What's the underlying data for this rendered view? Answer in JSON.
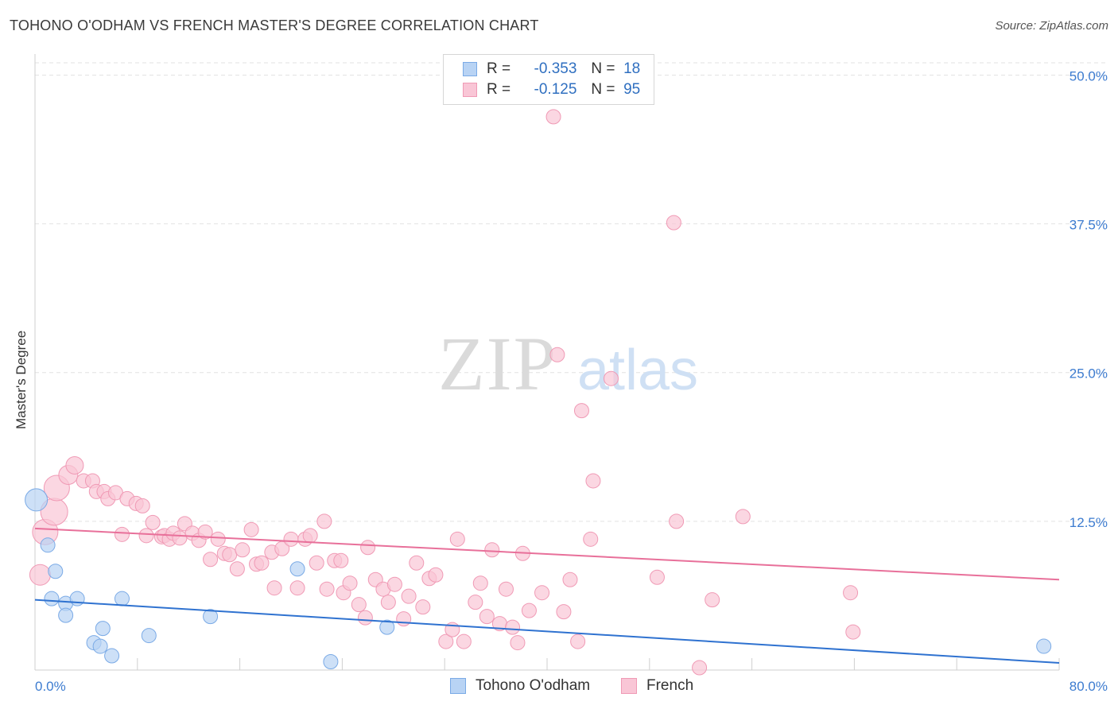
{
  "title": "TOHONO O'ODHAM VS FRENCH MASTER'S DEGREE CORRELATION CHART",
  "source": "Source: ZipAtlas.com",
  "watermark": {
    "zip": "ZIP",
    "atlas": "atlas"
  },
  "colors": {
    "blue_fill": "#b8d3f4",
    "blue_stroke": "#7aaae6",
    "blue_line": "#2f72d0",
    "pink_fill": "#f9c6d6",
    "pink_stroke": "#f09ab5",
    "pink_line": "#e8709a",
    "tick_label": "#3d7cd0",
    "grid": "#e2e2e2"
  },
  "legend": {
    "rows": [
      {
        "r_label": "R =",
        "r_value": "-0.353",
        "n_label": "N =",
        "n_value": "18"
      },
      {
        "r_label": "R =",
        "r_value": "-0.125",
        "n_label": "N =",
        "n_value": "95"
      }
    ]
  },
  "chart_data": {
    "type": "scatter",
    "title": "TOHONO O'ODHAM VS FRENCH MASTER'S DEGREE CORRELATION CHART",
    "xlabel": "",
    "ylabel": "Master's Degree",
    "xlim": [
      0,
      80
    ],
    "ylim": [
      0,
      51.5
    ],
    "x_tick_labels": [
      "0.0%",
      "80.0%"
    ],
    "y_ticks": [
      12.5,
      25.0,
      37.5,
      50.0
    ],
    "y_tick_labels": [
      "12.5%",
      "25.0%",
      "37.5%",
      "50.0%"
    ],
    "series": [
      {
        "name": "Tohono O'odham",
        "color": "blue",
        "trend": [
          [
            0,
            5.9
          ],
          [
            80,
            0.6
          ]
        ],
        "points": [
          [
            0.1,
            14.3,
            14
          ],
          [
            1.0,
            10.5,
            9
          ],
          [
            1.6,
            8.3,
            9
          ],
          [
            1.3,
            6.0,
            9
          ],
          [
            2.4,
            5.6,
            9
          ],
          [
            3.3,
            6.0,
            9
          ],
          [
            2.4,
            4.6,
            9
          ],
          [
            5.3,
            3.5,
            9
          ],
          [
            6.8,
            6.0,
            9
          ],
          [
            4.6,
            2.3,
            9
          ],
          [
            5.1,
            2.0,
            9
          ],
          [
            6.0,
            1.2,
            9
          ],
          [
            8.9,
            2.9,
            9
          ],
          [
            13.7,
            4.5,
            9
          ],
          [
            20.5,
            8.5,
            9
          ],
          [
            23.1,
            0.7,
            9
          ],
          [
            27.5,
            3.6,
            9
          ],
          [
            78.8,
            2.0,
            9
          ]
        ]
      },
      {
        "name": "French",
        "color": "pink",
        "trend": [
          [
            0,
            11.9
          ],
          [
            80,
            7.6
          ]
        ],
        "points": [
          [
            0.4,
            8.0,
            13
          ],
          [
            0.8,
            11.6,
            16
          ],
          [
            1.5,
            13.3,
            17
          ],
          [
            1.7,
            15.3,
            16
          ],
          [
            2.6,
            16.4,
            12
          ],
          [
            3.1,
            17.2,
            11
          ],
          [
            3.8,
            15.9,
            9
          ],
          [
            4.5,
            15.9,
            9
          ],
          [
            4.8,
            15.0,
            9
          ],
          [
            5.4,
            15.0,
            9
          ],
          [
            5.7,
            14.4,
            9
          ],
          [
            6.3,
            14.9,
            9
          ],
          [
            7.2,
            14.4,
            9
          ],
          [
            7.9,
            14.0,
            9
          ],
          [
            8.4,
            13.8,
            9
          ],
          [
            6.8,
            11.4,
            9
          ],
          [
            8.7,
            11.3,
            9
          ],
          [
            9.2,
            12.4,
            9
          ],
          [
            9.9,
            11.2,
            9
          ],
          [
            10.1,
            11.3,
            9
          ],
          [
            10.5,
            11.0,
            9
          ],
          [
            10.8,
            11.5,
            9
          ],
          [
            11.3,
            11.1,
            9
          ],
          [
            11.7,
            12.3,
            9
          ],
          [
            12.3,
            11.5,
            9
          ],
          [
            12.8,
            10.9,
            9
          ],
          [
            13.3,
            11.6,
            9
          ],
          [
            13.7,
            9.3,
            9
          ],
          [
            14.3,
            11.0,
            9
          ],
          [
            14.8,
            9.8,
            9
          ],
          [
            15.2,
            9.7,
            9
          ],
          [
            15.8,
            8.5,
            9
          ],
          [
            16.2,
            10.1,
            9
          ],
          [
            16.9,
            11.8,
            9
          ],
          [
            17.3,
            8.9,
            9
          ],
          [
            17.7,
            9.0,
            9
          ],
          [
            18.5,
            9.9,
            9
          ],
          [
            18.7,
            6.9,
            9
          ],
          [
            19.3,
            10.2,
            9
          ],
          [
            20.0,
            11.0,
            9
          ],
          [
            20.5,
            6.9,
            9
          ],
          [
            21.1,
            11.0,
            9
          ],
          [
            21.5,
            11.3,
            9
          ],
          [
            22.0,
            9.0,
            9
          ],
          [
            22.6,
            12.5,
            9
          ],
          [
            22.8,
            6.8,
            9
          ],
          [
            23.4,
            9.2,
            9
          ],
          [
            23.9,
            9.2,
            9
          ],
          [
            24.1,
            6.5,
            9
          ],
          [
            24.6,
            7.3,
            9
          ],
          [
            25.3,
            5.5,
            9
          ],
          [
            25.8,
            4.4,
            9
          ],
          [
            26.0,
            10.3,
            9
          ],
          [
            26.6,
            7.6,
            9
          ],
          [
            27.2,
            6.8,
            9
          ],
          [
            27.6,
            5.7,
            9
          ],
          [
            28.1,
            7.2,
            9
          ],
          [
            28.8,
            4.3,
            9
          ],
          [
            29.2,
            6.2,
            9
          ],
          [
            29.8,
            9.0,
            9
          ],
          [
            30.3,
            5.3,
            9
          ],
          [
            30.8,
            7.7,
            9
          ],
          [
            31.3,
            8.0,
            9
          ],
          [
            32.1,
            2.4,
            9
          ],
          [
            32.6,
            3.4,
            9
          ],
          [
            33.0,
            11.0,
            9
          ],
          [
            33.5,
            2.4,
            9
          ],
          [
            34.4,
            5.7,
            9
          ],
          [
            34.8,
            7.3,
            9
          ],
          [
            35.3,
            4.5,
            9
          ],
          [
            35.7,
            10.1,
            9
          ],
          [
            36.3,
            3.9,
            9
          ],
          [
            36.8,
            6.8,
            9
          ],
          [
            37.3,
            3.6,
            9
          ],
          [
            37.7,
            2.3,
            9
          ],
          [
            38.1,
            9.8,
            9
          ],
          [
            38.6,
            5.0,
            9
          ],
          [
            39.6,
            6.5,
            9
          ],
          [
            40.5,
            46.5,
            9
          ],
          [
            40.8,
            26.5,
            9
          ],
          [
            41.3,
            4.9,
            9
          ],
          [
            41.8,
            7.6,
            9
          ],
          [
            42.4,
            2.4,
            9
          ],
          [
            42.7,
            21.8,
            9
          ],
          [
            43.4,
            11.0,
            9
          ],
          [
            43.6,
            15.9,
            9
          ],
          [
            45.0,
            24.5,
            9
          ],
          [
            48.6,
            7.8,
            9
          ],
          [
            49.9,
            37.6,
            9
          ],
          [
            50.1,
            12.5,
            9
          ],
          [
            51.9,
            0.2,
            9
          ],
          [
            52.9,
            5.9,
            9
          ],
          [
            55.3,
            12.9,
            9
          ],
          [
            63.7,
            6.5,
            9
          ],
          [
            63.9,
            3.2,
            9
          ]
        ]
      }
    ]
  }
}
